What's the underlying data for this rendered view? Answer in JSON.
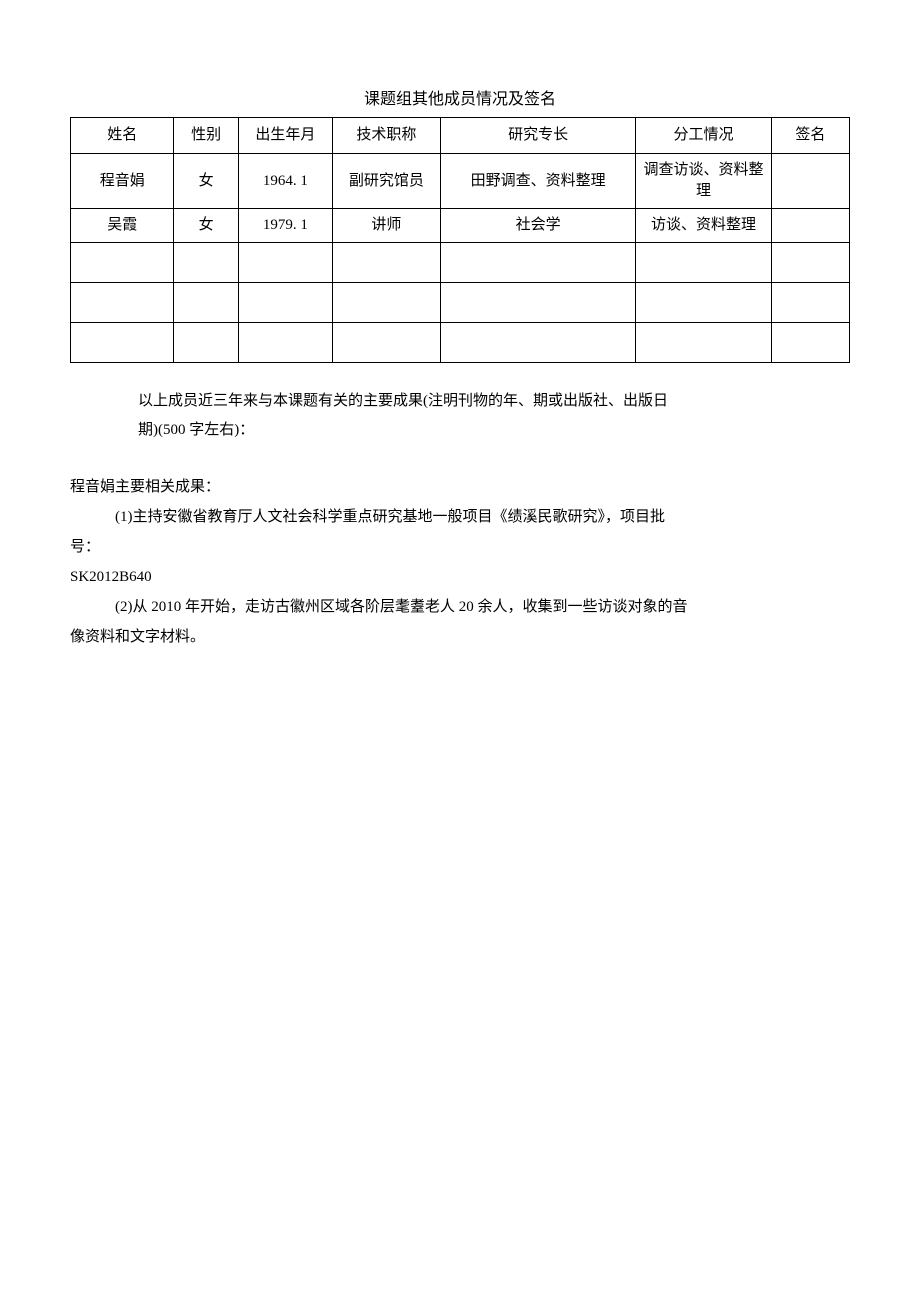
{
  "title": "课题组其他成员情况及签名",
  "table": {
    "columns": [
      "姓名",
      "性别",
      "出生年月",
      "技术职称",
      "研究专长",
      "分工情况",
      "签名"
    ],
    "rows": [
      [
        "程音娟",
        "女",
        "1964. 1",
        "副研究馆员",
        "田野调查、资料整理",
        "调查访谈、资料整理",
        ""
      ],
      [
        "吴霞",
        "女",
        "1979. 1",
        "讲师",
        "社会学",
        "访谈、资料整理",
        ""
      ],
      [
        "",
        "",
        "",
        "",
        "",
        "",
        ""
      ],
      [
        "",
        "",
        "",
        "",
        "",
        "",
        ""
      ],
      [
        "",
        "",
        "",
        "",
        "",
        "",
        ""
      ]
    ]
  },
  "intro": {
    "line1": "以上成员近三年来与本课题有关的主要成果(注明刊物的年、期或出版社、出版日",
    "line2": "期)(500 字左右)："
  },
  "body": {
    "heading": "程音娟主要相关成果：",
    "p1": "(1)主持安徽省教育厅人文社会科学重点研究基地一般项目《绩溪民歌研究》，项目批",
    "p1b": "号：",
    "code": "SK2012B640",
    "p2": "(2)从 2010 年开始，走访古徽州区域各阶层耄耋老人 20 余人，收集到一些访谈对象的音",
    "p2b": "像资料和文字材料。"
  }
}
